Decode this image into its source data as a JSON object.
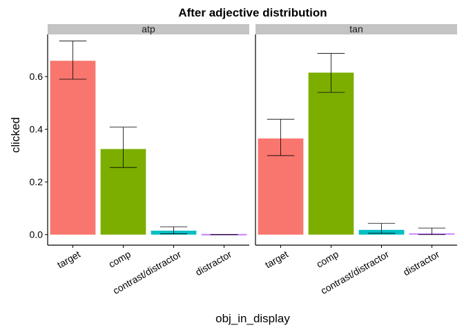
{
  "chart_data": {
    "type": "bar",
    "title": "After adjective distribution",
    "xlabel": "obj_in_display",
    "ylabel": "clicked",
    "ylim": [
      -0.04,
      0.76
    ],
    "yticks": [
      "0.0",
      "0.2",
      "0.4",
      "0.6"
    ],
    "ytick_values": [
      0.0,
      0.2,
      0.4,
      0.6
    ],
    "grid": false,
    "categories": [
      "target",
      "comp",
      "contrast/distractor",
      "distractor"
    ],
    "colors": [
      "#F8766D",
      "#7CAE00",
      "#00BFC4",
      "#C77CFF"
    ],
    "panels": [
      {
        "name": "atp",
        "values": [
          0.66,
          0.325,
          0.015,
          0.0
        ],
        "err_low": [
          0.59,
          0.255,
          0.003,
          0.0
        ],
        "err_high": [
          0.735,
          0.408,
          0.03,
          0.0
        ]
      },
      {
        "name": "tan",
        "values": [
          0.365,
          0.615,
          0.018,
          0.005
        ],
        "err_low": [
          0.3,
          0.54,
          0.005,
          0.0
        ],
        "err_high": [
          0.438,
          0.688,
          0.043,
          0.025
        ]
      }
    ]
  }
}
